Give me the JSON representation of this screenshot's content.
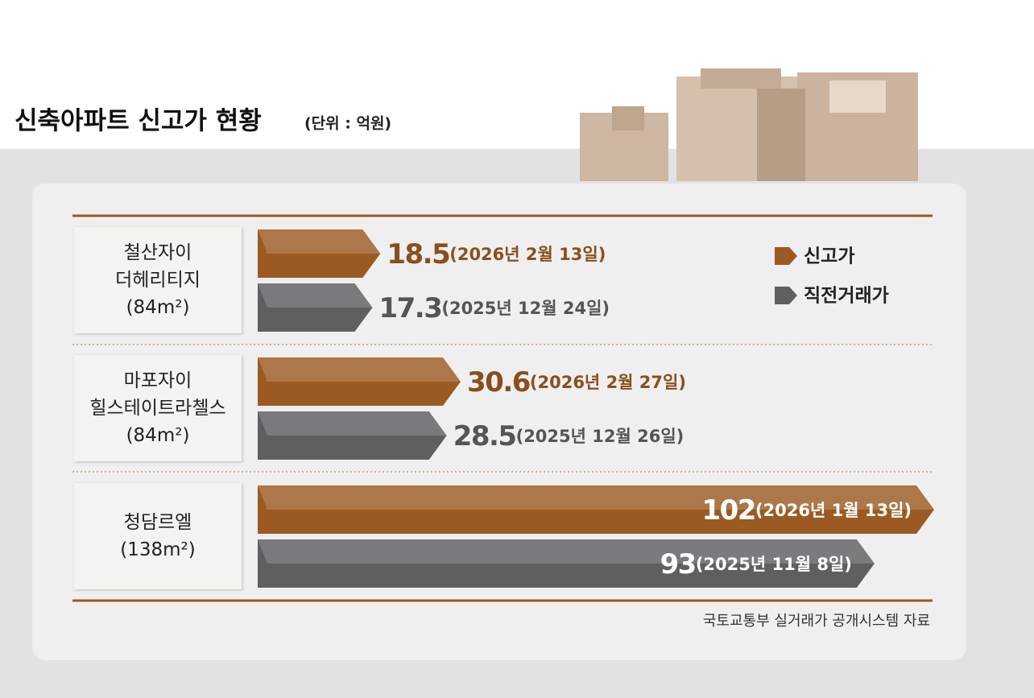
{
  "chart_data": {
    "type": "bar",
    "orientation": "horizontal",
    "title": "신축아파트 신고가 현황",
    "subtitle": "(단위 : 억원)",
    "categories": [
      "철산자이\n더헤리티지\n(84m²)",
      "마포자이\n힐스테이트라첼스\n(84m²)",
      "청담르엘\n(138m²)"
    ],
    "series": [
      {
        "name": "신고가",
        "color": "#9a5a22",
        "values": [
          18.5,
          30.6,
          102
        ],
        "dates": [
          "(2026년 2월 13일)",
          "(2026년 2월 27일)",
          "(2026년 1월 13일)"
        ]
      },
      {
        "name": "직전거래가",
        "color": "#5e5f61",
        "values": [
          17.3,
          28.5,
          93
        ],
        "dates": [
          "(2025년 12월 24일)",
          "(2025년 12월 26일)",
          "(2025년 11월 8일)"
        ]
      }
    ],
    "source": "국토교통부 실거래가 공개시스템 자료"
  }
}
